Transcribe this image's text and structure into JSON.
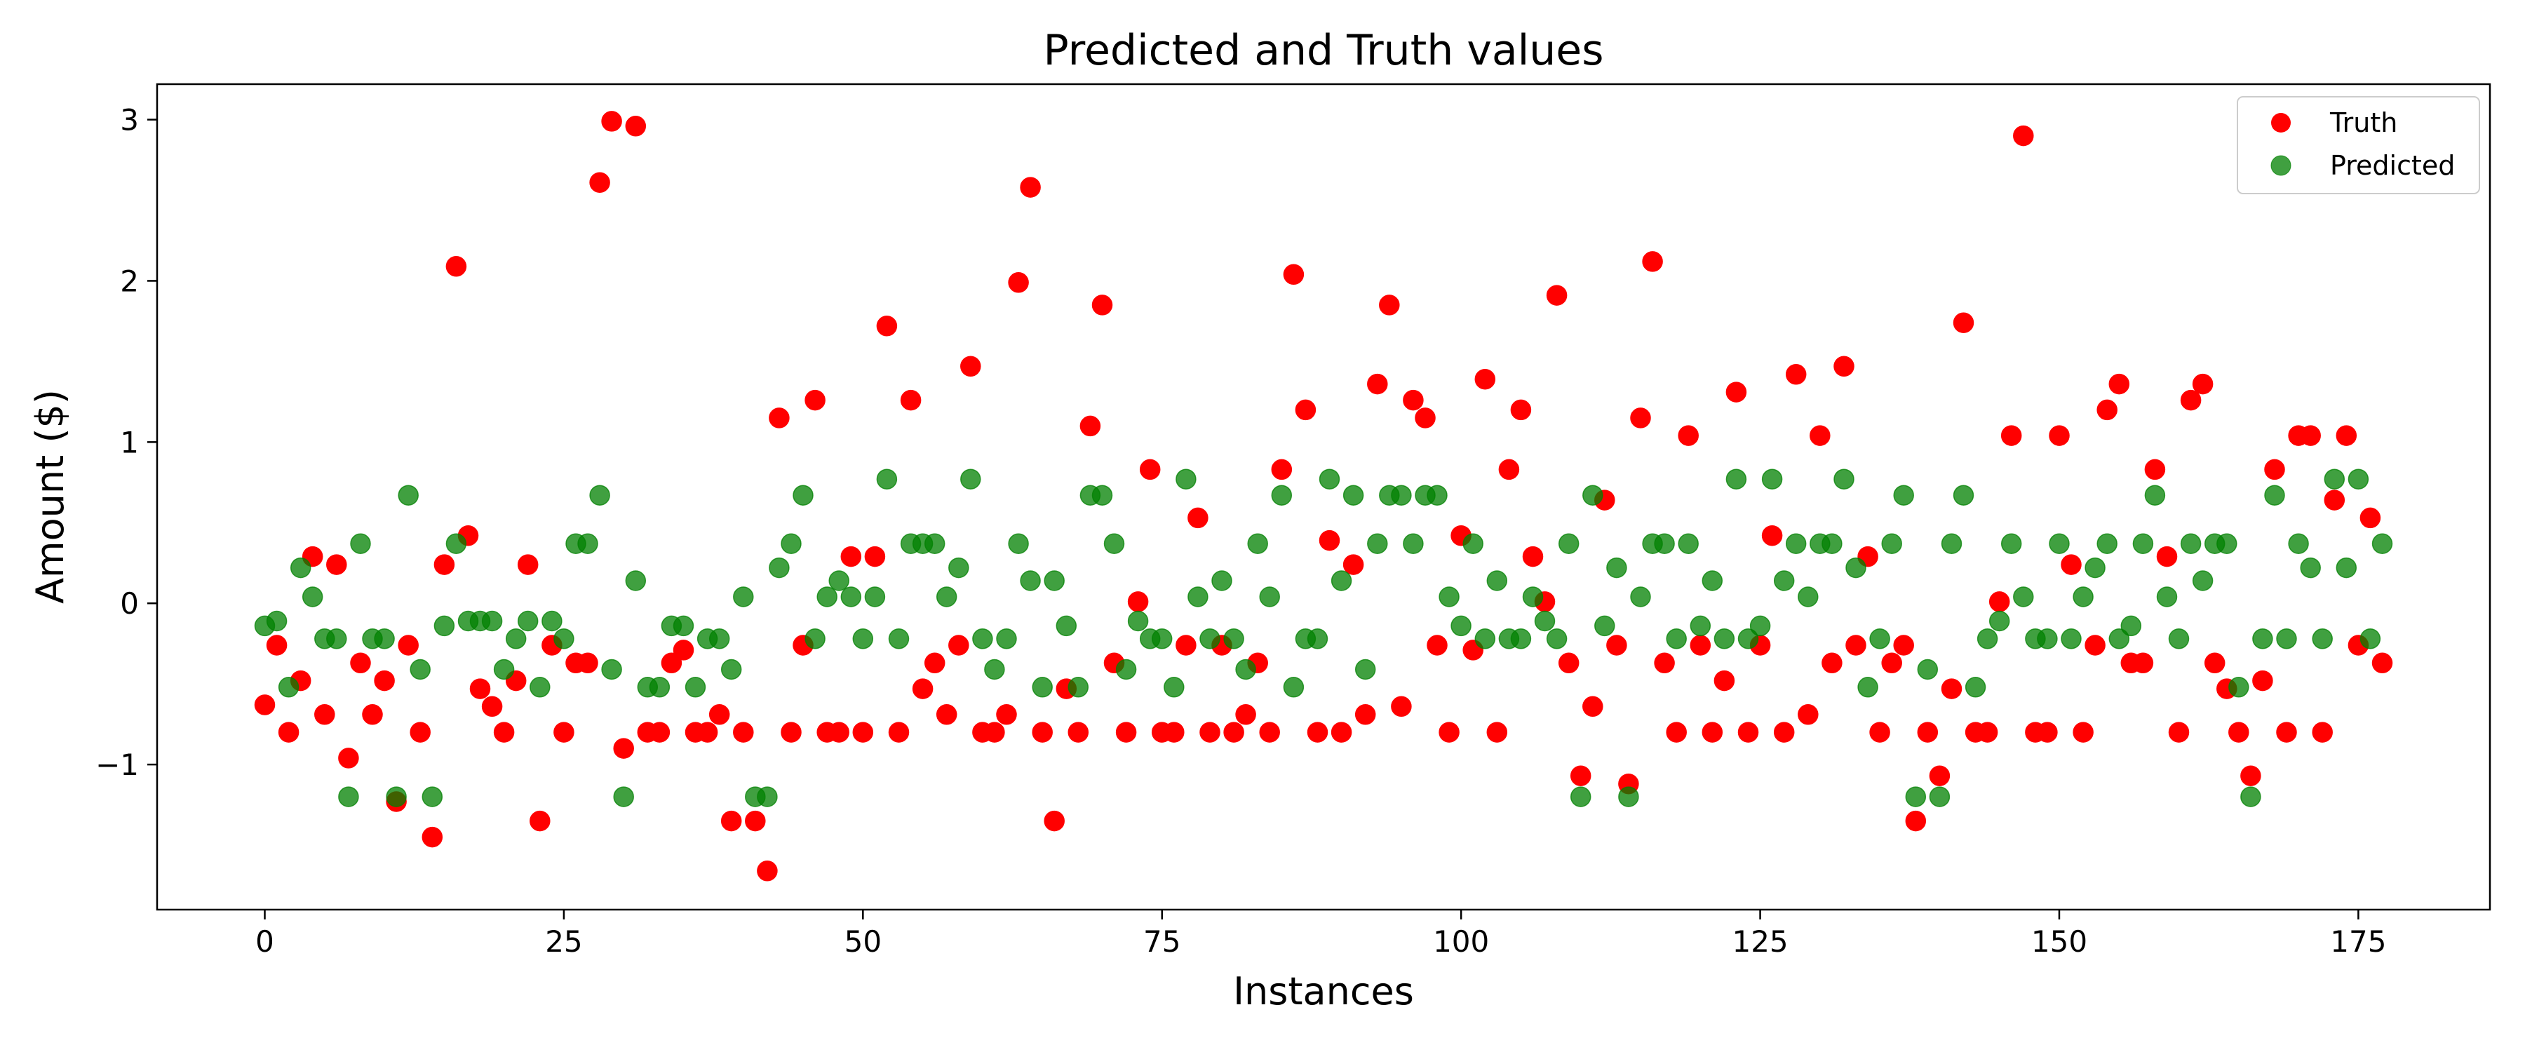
{
  "chart_data": {
    "type": "scatter",
    "title": "Predicted and Truth values",
    "xlabel": "Instances",
    "ylabel": "Amount ($)",
    "xlim": [
      -9,
      186
    ],
    "ylim": [
      -1.9,
      3.22
    ],
    "xticks": [
      0,
      25,
      50,
      75,
      100,
      125,
      150,
      175
    ],
    "yticks": [
      -1,
      0,
      1,
      2,
      3
    ],
    "xtick_labels": [
      "0",
      "25",
      "50",
      "75",
      "100",
      "125",
      "150",
      "175"
    ],
    "ytick_labels": [
      "−1",
      "0",
      "1",
      "2",
      "3"
    ],
    "grid": false,
    "legend_position": "top-right",
    "series": [
      {
        "name": "Truth",
        "color": "#ff0000",
        "y": [
          -0.63,
          -0.26,
          -0.8,
          -0.48,
          0.29,
          -0.69,
          0.24,
          -0.96,
          -0.37,
          -0.69,
          -0.48,
          -1.23,
          -0.26,
          -0.8,
          -1.45,
          0.24,
          2.09,
          0.42,
          -0.53,
          -0.64,
          -0.8,
          -0.48,
          0.24,
          -1.35,
          -0.26,
          -0.8,
          -0.37,
          -0.37,
          2.61,
          2.99,
          -0.9,
          2.96,
          -0.8,
          -0.8,
          -0.37,
          -0.29,
          -0.8,
          -0.8,
          -0.69,
          -1.35,
          -0.8,
          -1.35,
          -1.66,
          1.15,
          -0.8,
          -0.26,
          1.26,
          -0.8,
          -0.8,
          0.29,
          -0.8,
          0.29,
          1.72,
          -0.8,
          1.26,
          -0.53,
          -0.37,
          -0.69,
          -0.26,
          1.47,
          -0.8,
          -0.8,
          -0.69,
          1.99,
          2.58,
          -0.8,
          -1.35,
          -0.53,
          -0.8,
          1.1,
          1.85,
          -0.37,
          -0.8,
          0.01,
          0.83,
          -0.8,
          -0.8,
          -0.26,
          0.53,
          -0.8,
          -0.26,
          -0.8,
          -0.69,
          -0.37,
          -0.8,
          0.83,
          2.04,
          1.2,
          -0.8,
          0.39,
          -0.8,
          0.24,
          -0.69,
          1.36,
          1.85,
          -0.64,
          1.26,
          1.15,
          -0.26,
          -0.8,
          0.42,
          -0.29,
          1.39,
          -0.8,
          0.83,
          1.2,
          0.29,
          0.01,
          1.91,
          -0.37,
          -1.07,
          -0.64,
          0.64,
          -0.26,
          -1.12,
          1.15,
          2.12,
          -0.37,
          -0.8,
          1.04,
          -0.26,
          -0.8,
          -0.48,
          1.31,
          -0.8,
          -0.26,
          0.42,
          -0.8,
          1.42,
          -0.69,
          1.04,
          -0.37,
          1.47,
          -0.26,
          0.29,
          -0.8,
          -0.37,
          -0.26,
          -1.35,
          -0.8,
          -1.07,
          -0.53,
          1.74,
          -0.8,
          -0.8,
          0.01,
          1.04,
          2.9,
          -0.8,
          -0.8,
          1.04,
          0.24,
          -0.8,
          -0.26,
          1.2,
          1.36,
          -0.37,
          -0.37,
          0.83,
          0.29,
          -0.8,
          1.26,
          1.36,
          -0.37,
          -0.53,
          -0.8,
          -1.07,
          -0.48,
          0.83,
          -0.8,
          1.04,
          1.04,
          -0.8,
          0.64,
          1.04,
          -0.26,
          0.53,
          -0.37
        ]
      },
      {
        "name": "Predicted",
        "color": "#008000",
        "opacity": 0.75,
        "y": [
          -0.14,
          -0.11,
          -0.52,
          0.22,
          0.04,
          -0.22,
          -0.22,
          -1.2,
          0.37,
          -0.22,
          -0.22,
          -1.2,
          0.67,
          -0.41,
          -1.2,
          -0.14,
          0.37,
          -0.11,
          -0.11,
          -0.11,
          -0.41,
          -0.22,
          -0.11,
          -0.52,
          -0.11,
          -0.22,
          0.37,
          0.37,
          0.67,
          -0.41,
          -1.2,
          0.14,
          -0.52,
          -0.52,
          -0.14,
          -0.14,
          -0.52,
          -0.22,
          -0.22,
          -0.41,
          0.04,
          -1.2,
          -1.2,
          0.22,
          0.37,
          0.67,
          -0.22,
          0.04,
          0.14,
          0.04,
          -0.22,
          0.04,
          0.77,
          -0.22,
          0.37,
          0.37,
          0.37,
          0.04,
          0.22,
          0.77,
          -0.22,
          -0.41,
          -0.22,
          0.37,
          0.14,
          -0.52,
          0.14,
          -0.14,
          -0.52,
          0.67,
          0.67,
          0.37,
          -0.41,
          -0.11,
          -0.22,
          -0.22,
          -0.52,
          0.77,
          0.04,
          -0.22,
          0.14,
          -0.22,
          -0.41,
          0.37,
          0.04,
          0.67,
          -0.52,
          -0.22,
          -0.22,
          0.77,
          0.14,
          0.67,
          -0.41,
          0.37,
          0.67,
          0.67,
          0.37,
          0.67,
          0.67,
          0.04,
          -0.14,
          0.37,
          -0.22,
          0.14,
          -0.22,
          -0.22,
          0.04,
          -0.11,
          -0.22,
          0.37,
          -1.2,
          0.67,
          -0.14,
          0.22,
          -1.2,
          0.04,
          0.37,
          0.37,
          -0.22,
          0.37,
          -0.14,
          0.14,
          -0.22,
          0.77,
          -0.22,
          -0.14,
          0.77,
          0.14,
          0.37,
          0.04,
          0.37,
          0.37,
          0.77,
          0.22,
          -0.52,
          -0.22,
          0.37,
          0.67,
          -1.2,
          -0.41,
          -1.2,
          0.37,
          0.67,
          -0.52,
          -0.22,
          -0.11,
          0.37,
          0.04,
          -0.22,
          -0.22,
          0.37,
          -0.22,
          0.04,
          0.22,
          0.37,
          -0.22,
          -0.14,
          0.37,
          0.67,
          0.04,
          -0.22,
          0.37,
          0.14,
          0.37,
          0.37,
          -0.52,
          -1.2,
          -0.22,
          0.67,
          -0.22,
          0.37,
          0.22,
          -0.22,
          0.77,
          0.22,
          0.77,
          -0.22,
          0.37
        ]
      }
    ]
  }
}
